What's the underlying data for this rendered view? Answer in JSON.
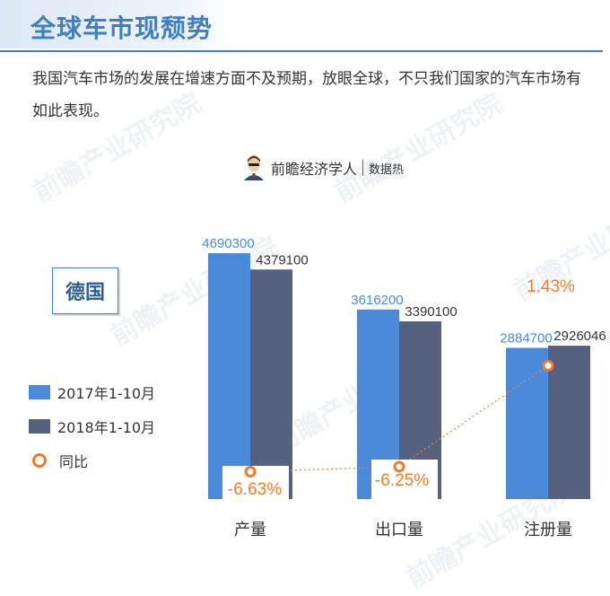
{
  "header": {
    "title": "全球车市现颓势",
    "intro": "我国汽车市场的发展在增速方面不及预期，放眼全球，不只我们国家的汽车市场有如此表现。"
  },
  "brand": {
    "name": "前瞻经济学人",
    "sub": "数据热"
  },
  "country": "德国",
  "watermark": "前瞻产业研究院",
  "colors": {
    "series_2017": "#4a8ad8",
    "series_2018": "#56607f",
    "yoy": "#f07c2a",
    "accent": "#3f7fc2"
  },
  "legend": {
    "s1": "2017年1-10月",
    "s2": "2018年1-10月",
    "s3": "同比"
  },
  "chart_data": {
    "type": "bar",
    "categories": [
      "产量",
      "出口量",
      "注册量"
    ],
    "series": [
      {
        "name": "2017年1-10月",
        "values": [
          4690300,
          3616200,
          2884700
        ]
      },
      {
        "name": "2018年1-10月",
        "values": [
          4379100,
          3390100,
          2926046
        ]
      }
    ],
    "value_labels": [
      [
        "4690300",
        "3616200",
        "2884700"
      ],
      [
        "4379100",
        "3390100",
        "2926046"
      ]
    ],
    "yoy": {
      "name": "同比",
      "values": [
        -6.63,
        -6.25,
        1.43
      ],
      "labels": [
        "-6.63%",
        "-6.25%",
        "1.43%"
      ]
    },
    "grid": false,
    "legend_position": "left"
  }
}
